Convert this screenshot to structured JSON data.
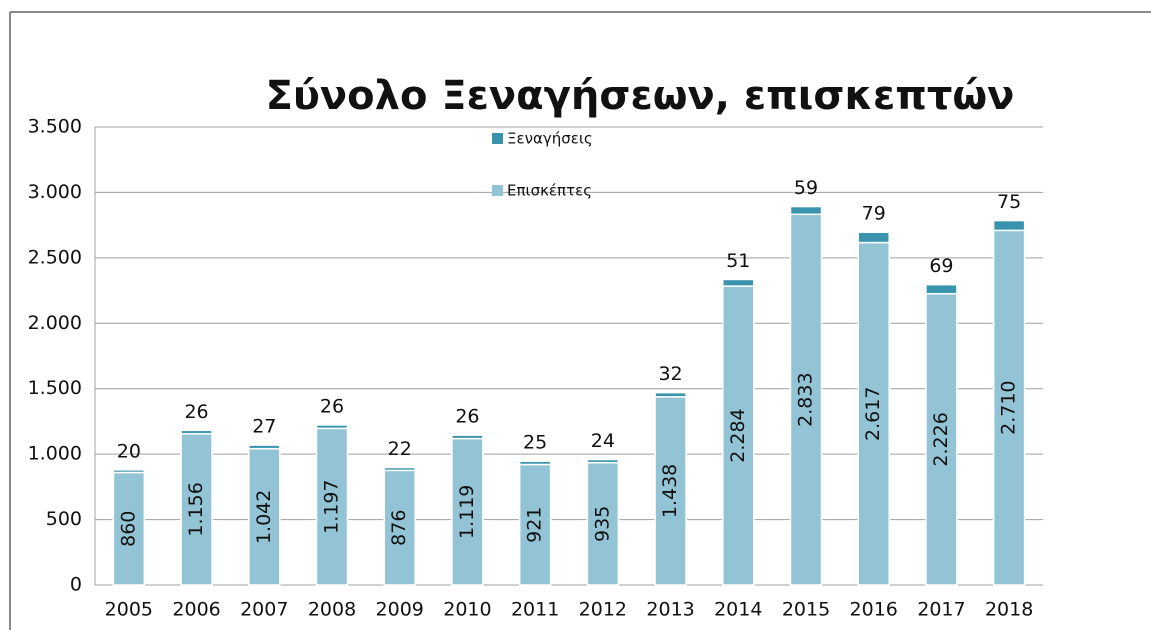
{
  "chart_data": {
    "type": "stacked_bar",
    "title": "Σύνολο Ξεναγήσεων, επισκεπτών",
    "categories": [
      "2005",
      "2006",
      "2007",
      "2008",
      "2009",
      "2010",
      "2011",
      "2012",
      "2013",
      "2014",
      "2015",
      "2016",
      "2017",
      "2018"
    ],
    "series": [
      {
        "name": "Επισκέπτες",
        "color": "#93c4d6",
        "values": [
          860,
          1156,
          1042,
          1197,
          876,
          1119,
          921,
          935,
          1438,
          2284,
          2833,
          2617,
          2226,
          2710
        ],
        "value_labels": [
          "860",
          "1.156",
          "1.042",
          "1.197",
          "876",
          "1.119",
          "921",
          "935",
          "1.438",
          "2.284",
          "2.833",
          "2.617",
          "2.226",
          "2.710"
        ]
      },
      {
        "name": "Ξεναγήσεις",
        "color": "#3a93ad",
        "values": [
          20,
          26,
          27,
          26,
          22,
          26,
          25,
          24,
          32,
          51,
          59,
          79,
          69,
          75
        ]
      }
    ],
    "ylim": [
      0,
      3500
    ],
    "yticks": [
      0,
      500,
      {
        "value": 1000,
        "label": "1.000"
      },
      {
        "value": 1500,
        "label": "1.500"
      },
      {
        "value": 2000,
        "label": "2.000"
      },
      {
        "value": 2500,
        "label": "2.500"
      },
      {
        "value": 3000,
        "label": "3.000"
      },
      {
        "value": 3500,
        "label": "3.500"
      }
    ],
    "grid": true
  }
}
